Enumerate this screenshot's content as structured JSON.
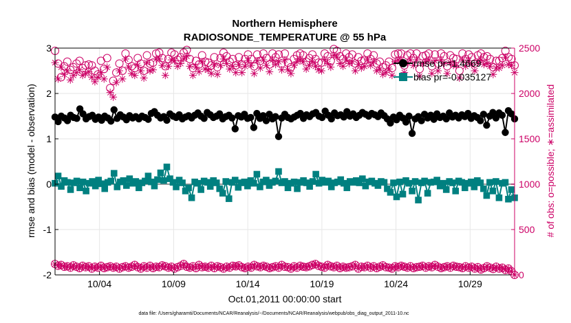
{
  "title": "Northern Hemisphere",
  "subtitle": "RADIOSONDE_TEMPERATURE @ 55 hPa",
  "footer": "data file: /Users/gharamti/Documents/NCAR/Reanalysis/~/Documents/NCAR/Reanalysis/webpub/obs_diag_output_2011-10.nc",
  "colors": {
    "rmse": "#000000",
    "bias": "#008080",
    "obs": "#cc0066",
    "zero_line": "#999999",
    "grid": "#e6e6e6"
  },
  "chart_data": {
    "type": "line",
    "title": "Northern Hemisphere",
    "subtitle": "RADIOSONDE_TEMPERATURE @ 55 hPa",
    "xlabel": "Oct.01,2011 00:00:00 start",
    "ylabel": "rmse and bias (model - observation)",
    "y2label": "# of obs: o=possible; ∗=assimilated",
    "xlim": [
      1,
      32
    ],
    "ylim": [
      -2,
      3
    ],
    "y2lim": [
      0,
      2500
    ],
    "xticks": [
      4,
      9,
      14,
      19,
      24,
      29
    ],
    "xtick_labels": [
      "10/04",
      "10/09",
      "10/14",
      "10/19",
      "10/24",
      "10/29"
    ],
    "yticks": [
      -2,
      -1,
      0,
      1,
      2,
      3
    ],
    "ytick_labels": [
      "-2",
      "-1",
      "0",
      "1",
      "2",
      "3"
    ],
    "y2ticks": [
      0,
      500,
      1000,
      1500,
      2000,
      2500
    ],
    "y2tick_labels": [
      "0",
      "500",
      "1000",
      "1500",
      "2000",
      "2500"
    ],
    "grid": true,
    "legend_position": "top-right",
    "legend": [
      "rmse pr=1.4669",
      "bias pr=-0.035127"
    ],
    "series": [
      {
        "name": "rmse pr=1.4669",
        "axis": "left",
        "marker": "filled-circle",
        "values": [
          1.48,
          1.38,
          1.5,
          1.46,
          1.4,
          1.52,
          1.47,
          1.45,
          1.66,
          1.55,
          1.44,
          1.49,
          1.52,
          1.43,
          1.48,
          1.41,
          1.5,
          1.46,
          1.39,
          1.64,
          1.45,
          1.53,
          1.48,
          1.42,
          1.51,
          1.46,
          1.49,
          1.44,
          1.5,
          1.47,
          1.43,
          1.56,
          1.6,
          1.52,
          1.46,
          1.49,
          1.41,
          1.55,
          1.5,
          1.47,
          1.53,
          1.44,
          1.48,
          1.51,
          1.46,
          1.52,
          1.57,
          1.5,
          1.45,
          1.58,
          1.53,
          1.47,
          1.5,
          1.55,
          1.44,
          1.49,
          1.52,
          1.46,
          1.22,
          1.51,
          1.48,
          1.54,
          1.45,
          1.47,
          1.25,
          1.56,
          1.45,
          1.51,
          1.4,
          1.54,
          1.44,
          1.49,
          1.05,
          1.46,
          1.54,
          1.47,
          1.44,
          1.48,
          1.52,
          1.56,
          1.45,
          1.53,
          1.49,
          1.55,
          1.58,
          1.5,
          1.47,
          1.61,
          1.52,
          1.44,
          1.57,
          1.51,
          1.53,
          1.48,
          1.6,
          1.5,
          1.55,
          1.47,
          1.52,
          1.58,
          1.54,
          1.5,
          1.56,
          1.53,
          1.49,
          1.57,
          1.51,
          1.44,
          1.35,
          1.48,
          1.42,
          1.52,
          1.46,
          1.37,
          1.5,
          1.12,
          1.44,
          1.49,
          1.4,
          1.54,
          1.46,
          1.52,
          1.43,
          1.55,
          1.47,
          1.5,
          1.44,
          1.57,
          1.48,
          1.52,
          1.46,
          1.53,
          1.49,
          1.56,
          1.45,
          1.51,
          1.47,
          1.4,
          1.54,
          1.3,
          1.5,
          1.58,
          1.46,
          1.57,
          1.52,
          1.14,
          1.62,
          1.55,
          1.44
        ]
      },
      {
        "name": "bias pr=-0.035127",
        "axis": "left",
        "marker": "filled-square",
        "values": [
          0.02,
          0.18,
          -0.05,
          0.08,
          0.04,
          -0.12,
          0.03,
          0.07,
          -0.08,
          0.05,
          -0.15,
          0.02,
          0.06,
          -0.04,
          0.09,
          0.01,
          -0.1,
          0.04,
          0.07,
          0.24,
          -0.06,
          0.05,
          0.08,
          -0.03,
          0.12,
          0.02,
          0.06,
          -0.08,
          0.03,
          0.07,
          0.18,
          0.05,
          -0.04,
          0.1,
          0.25,
          0.08,
          0.38,
          0.12,
          0.04,
          -0.06,
          0.09,
          0.03,
          -0.15,
          -0.08,
          -0.3,
          0.05,
          0.02,
          -0.12,
          0.07,
          0.04,
          -0.05,
          0.08,
          0.03,
          -0.1,
          -0.2,
          0.06,
          -0.32,
          0.04,
          0.09,
          -0.07,
          0.03,
          0.05,
          -0.04,
          0.08,
          0.02,
          0.22,
          -0.06,
          0.05,
          0.09,
          -0.03,
          0.04,
          0.07,
          0.28,
          0.03,
          0.06,
          -0.08,
          0.02,
          0.05,
          -0.1,
          0.04,
          0.08,
          0.03,
          -0.05,
          0.06,
          0.22,
          0.02,
          0.09,
          0.04,
          0.07,
          -0.06,
          0.03,
          0.05,
          0.1,
          0.02,
          -0.08,
          0.06,
          0.04,
          0.08,
          0.03,
          0.12,
          -0.04,
          0.05,
          0.07,
          0.02,
          -0.03,
          0.06,
          0.04,
          -0.1,
          -0.18,
          0.03,
          -0.28,
          0.05,
          -0.22,
          0.08,
          0.02,
          -0.15,
          0.06,
          -0.35,
          0.03,
          0.07,
          -0.2,
          0.04,
          0.05,
          0.09,
          -0.04,
          0.02,
          -0.12,
          0.06,
          0.03,
          -0.15,
          0.07,
          0.04,
          -0.08,
          0.02,
          0.05,
          -0.06,
          0.08,
          0.03,
          -0.1,
          -0.25,
          0.04,
          -0.15,
          0.06,
          -0.3,
          0.02,
          0.04,
          -0.33,
          -0.12,
          -0.3
        ]
      },
      {
        "name": "possible",
        "axis": "right",
        "marker": "open-circle",
        "values": [
          2470,
          2330,
          2180,
          2300,
          2350,
          2260,
          2290,
          2330,
          2360,
          2280,
          2310,
          2320,
          2310,
          2250,
          2210,
          2360,
          2270,
          2390,
          2060,
          2140,
          2230,
          2330,
          2250,
          2440,
          2370,
          2300,
          2280,
          2390,
          2330,
          2250,
          2420,
          2330,
          2340,
          2440,
          2450,
          2390,
          2300,
          2380,
          2450,
          2430,
          2370,
          2400,
          2450,
          2480,
          2380,
          2280,
          2360,
          2320,
          2420,
          2350,
          2340,
          2310,
          2400,
          2290,
          2390,
          2450,
          2410,
          2350,
          2380,
          2310,
          2400,
          2320,
          2380,
          2430,
          2380,
          2300,
          2430,
          2360,
          2440,
          2390,
          2320,
          2440,
          2400,
          2430,
          2330,
          2440,
          2340,
          2290,
          2380,
          2420,
          2440,
          2420,
          2350,
          2390,
          2430,
          2380,
          2340,
          2340,
          2440,
          2410,
          2360,
          2490,
          2470,
          2410,
          2380,
          2440,
          2400,
          2430,
          2330,
          2400,
          2360,
          2370,
          2440,
          2380,
          2420,
          2330,
          2350,
          2290,
          2310,
          2350,
          2280,
          2430,
          2440,
          2440,
          2310,
          2420,
          2440,
          2390,
          2440,
          2270,
          2410,
          2420,
          2440,
          2300,
          2430,
          2330,
          2440,
          2410,
          2300,
          2420,
          2390,
          2380,
          2250,
          2440,
          2380,
          2430,
          2400,
          2330,
          2420,
          2440,
          2400,
          2410,
          2380,
          2290,
          2360,
          2360,
          2390,
          2470,
          2400,
          2380,
          2310
        ]
      },
      {
        "name": "assimilated",
        "axis": "right",
        "marker": "asterisk",
        "values": [
          2340,
          2160,
          2290,
          2210,
          2250,
          2150,
          2200,
          2230,
          2260,
          2200,
          2220,
          2240,
          2180,
          2130,
          2180,
          2230,
          2160,
          2290,
          2010,
          1960,
          2120,
          2250,
          2160,
          2380,
          2290,
          2220,
          2200,
          2310,
          2250,
          2170,
          2340,
          2250,
          2260,
          2380,
          2380,
          2310,
          2200,
          2300,
          2370,
          2360,
          2300,
          2330,
          2380,
          2410,
          2300,
          2200,
          2290,
          2240,
          2350,
          2270,
          2260,
          2220,
          2320,
          2210,
          2310,
          2380,
          2330,
          2270,
          2300,
          2230,
          2320,
          2230,
          2300,
          2360,
          2310,
          2220,
          2360,
          2280,
          2370,
          2310,
          2240,
          2370,
          2320,
          2350,
          2260,
          2370,
          2260,
          2220,
          2310,
          2350,
          2370,
          2350,
          2270,
          2310,
          2350,
          2300,
          2260,
          2250,
          2370,
          2330,
          2290,
          2420,
          2400,
          2330,
          2300,
          2370,
          2330,
          2350,
          2250,
          2320,
          2280,
          2300,
          2370,
          2310,
          2350,
          2250,
          2270,
          2210,
          2230,
          2270,
          2200,
          2350,
          2370,
          2370,
          2230,
          2340,
          2370,
          2310,
          2370,
          2190,
          2330,
          2350,
          2370,
          2220,
          2360,
          2250,
          2370,
          2330,
          2220,
          2340,
          2310,
          2310,
          2170,
          2370,
          2300,
          2360,
          2320,
          2250,
          2340,
          2370,
          2320,
          2330,
          2300,
          2210,
          2280,
          2280,
          2310,
          2400,
          2320,
          2310,
          2230
        ]
      },
      {
        "name": "possible",
        "axis": "right",
        "marker": "open-circle",
        "values": [
          120,
          100,
          110,
          90,
          95,
          80,
          105,
          90,
          75,
          100,
          85,
          95,
          70,
          90,
          80,
          100,
          75,
          85,
          95,
          80,
          90,
          70,
          85,
          95,
          80,
          90,
          110,
          85,
          70,
          95,
          80,
          100,
          75,
          90,
          85,
          105,
          95,
          80,
          90,
          70,
          85,
          100,
          120,
          90,
          80,
          95,
          75,
          110,
          85,
          90,
          80,
          100,
          75,
          95,
          85,
          70,
          90,
          80,
          100,
          95,
          105,
          85,
          75,
          90,
          80,
          110,
          95,
          85,
          100,
          90,
          75,
          85,
          95,
          80,
          110,
          90,
          85,
          70,
          95,
          80,
          100,
          90,
          85,
          95,
          110,
          120,
          100,
          90,
          80,
          110,
          95,
          85,
          100,
          75,
          90,
          80,
          85,
          95,
          110,
          70,
          90,
          85,
          100,
          80,
          95,
          75,
          90,
          105,
          85,
          80,
          70,
          95,
          85,
          100,
          90,
          80,
          95,
          75,
          85,
          90,
          100,
          80,
          95,
          85,
          110,
          90,
          75,
          85,
          95,
          80,
          100,
          90,
          85,
          75,
          95,
          80,
          90,
          70,
          85,
          60,
          75,
          95,
          80,
          65,
          90,
          70,
          80,
          55,
          70,
          40,
          0
        ]
      },
      {
        "name": "assimilated",
        "axis": "right",
        "marker": "asterisk",
        "values": [
          120,
          100,
          110,
          90,
          95,
          80,
          105,
          90,
          75,
          100,
          85,
          95,
          70,
          90,
          80,
          100,
          75,
          85,
          95,
          80,
          90,
          70,
          85,
          95,
          80,
          90,
          110,
          85,
          70,
          95,
          80,
          100,
          75,
          90,
          85,
          105,
          95,
          80,
          90,
          70,
          85,
          100,
          120,
          90,
          80,
          95,
          75,
          110,
          85,
          90,
          80,
          100,
          75,
          95,
          85,
          70,
          90,
          80,
          100,
          95,
          105,
          85,
          75,
          90,
          80,
          110,
          95,
          85,
          100,
          90,
          75,
          85,
          95,
          80,
          110,
          90,
          85,
          70,
          95,
          80,
          100,
          90,
          85,
          95,
          110,
          120,
          100,
          90,
          80,
          110,
          95,
          85,
          100,
          75,
          90,
          80,
          85,
          95,
          110,
          70,
          90,
          85,
          100,
          80,
          95,
          75,
          90,
          105,
          85,
          80,
          70,
          95,
          85,
          100,
          90,
          80,
          95,
          75,
          85,
          90,
          100,
          80,
          95,
          85,
          110,
          90,
          75,
          85,
          95,
          80,
          100,
          90,
          85,
          75,
          95,
          80,
          90,
          70,
          85,
          60,
          75,
          95,
          80,
          65,
          90,
          70,
          80,
          55,
          70,
          40,
          0
        ]
      }
    ]
  }
}
